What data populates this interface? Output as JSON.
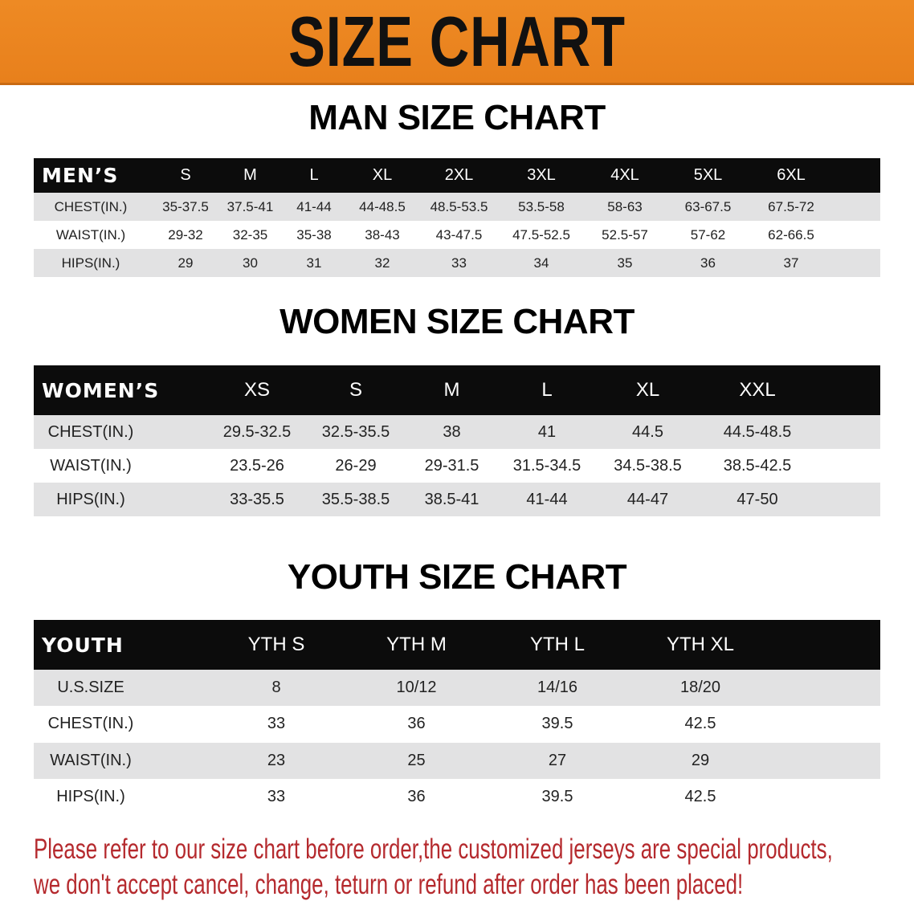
{
  "banner": {
    "title": "SIZE CHART",
    "color": "#e8801c"
  },
  "men": {
    "title": "MAN SIZE CHART",
    "header": "MEN’S",
    "sizes": [
      "S",
      "M",
      "L",
      "XL",
      "2XL",
      "3XL",
      "4XL",
      "5XL",
      "6XL"
    ],
    "rows": [
      {
        "label": "CHEST(IN.)",
        "values": [
          "35-37.5",
          "37.5-41",
          "41-44",
          "44-48.5",
          "48.5-53.5",
          "53.5-58",
          "58-63",
          "63-67.5",
          "67.5-72"
        ]
      },
      {
        "label": "WAIST(IN.)",
        "values": [
          "29-32",
          "32-35",
          "35-38",
          "38-43",
          "43-47.5",
          "47.5-52.5",
          "52.5-57",
          "57-62",
          "62-66.5"
        ]
      },
      {
        "label": "HIPS(IN.)",
        "values": [
          "29",
          "30",
          "31",
          "32",
          "33",
          "34",
          "35",
          "36",
          "37"
        ]
      }
    ]
  },
  "women": {
    "title": "WOMEN SIZE CHART",
    "header": "WOMEN’S",
    "sizes": [
      "XS",
      "S",
      "M",
      "L",
      "XL",
      "XXL"
    ],
    "rows": [
      {
        "label": "CHEST(IN.)",
        "values": [
          "29.5-32.5",
          "32.5-35.5",
          "38",
          "41",
          "44.5",
          "44.5-48.5"
        ]
      },
      {
        "label": "WAIST(IN.)",
        "values": [
          "23.5-26",
          "26-29",
          "29-31.5",
          "31.5-34.5",
          "34.5-38.5",
          "38.5-42.5"
        ]
      },
      {
        "label": "HIPS(IN.)",
        "values": [
          "33-35.5",
          "35.5-38.5",
          "38.5-41",
          "41-44",
          "44-47",
          "47-50"
        ]
      }
    ]
  },
  "youth": {
    "title": "YOUTH SIZE CHART",
    "header": "YOUTH",
    "sizes": [
      "YTH S",
      "YTH M",
      "YTH L",
      "YTH XL"
    ],
    "rows": [
      {
        "label": "U.S.SIZE",
        "values": [
          "8",
          "10/12",
          "14/16",
          "18/20"
        ]
      },
      {
        "label": "CHEST(IN.)",
        "values": [
          "33",
          "36",
          "39.5",
          "42.5"
        ]
      },
      {
        "label": "WAIST(IN.)",
        "values": [
          "23",
          "25",
          "27",
          "29"
        ]
      },
      {
        "label": "HIPS(IN.)",
        "values": [
          "33",
          "36",
          "39.5",
          "42.5"
        ]
      }
    ]
  },
  "note": {
    "line1": "Please refer to our size chart before order,the customized jerseys are special products,",
    "line2": "we don't accept cancel, change, teturn or refund after order has been placed!",
    "color": "#b52a2e"
  }
}
